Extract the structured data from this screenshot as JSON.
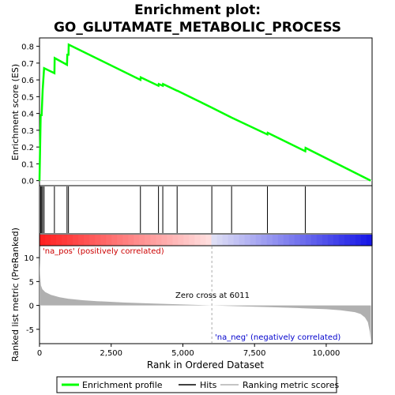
{
  "title_line1": "Enrichment plot:",
  "title_line2": "GO_GLUTAMATE_METABOLIC_PROCESS",
  "top_ylabel": "Enrichment score (ES)",
  "bottom_ylabel": "Ranked list metric (PreRanked)",
  "xlabel": "Rank in Ordered Dataset",
  "label_pos": "'na_pos' (positively correlated)",
  "label_neg": "'na_neg' (negatively correlated)",
  "zero_cross": "Zero cross at 6011",
  "legend": {
    "profile": "Enrichment profile",
    "hits": "Hits",
    "metric": "Ranking metric scores"
  },
  "colors": {
    "profile": "#00ff00",
    "hits": "#000000",
    "metric": "#b0b0b0",
    "pos": "#ff0000",
    "neg": "#0000ff"
  },
  "chart_data": {
    "type": "line",
    "x_ticks": [
      "0",
      "2,500",
      "5,000",
      "7,500",
      "10,000"
    ],
    "es_ticks": [
      "0.0",
      "0.1",
      "0.2",
      "0.3",
      "0.4",
      "0.5",
      "0.6",
      "0.7",
      "0.8"
    ],
    "metric_ticks": [
      "10",
      "5",
      "0",
      "-5"
    ],
    "xlim": [
      0,
      11600
    ],
    "es_ylim": [
      -0.03,
      0.85
    ],
    "metric_ylim": [
      -8,
      12.5
    ],
    "zero_cross": 6011,
    "hits": [
      40,
      75,
      110,
      160,
      520,
      960,
      1010,
      3520,
      4150,
      4300,
      4800,
      6010,
      6700,
      7950,
      9270
    ],
    "es_profile": [
      [
        0,
        0.0
      ],
      [
        40,
        0.39
      ],
      [
        75,
        0.39
      ],
      [
        110,
        0.54
      ],
      [
        160,
        0.67
      ],
      [
        520,
        0.64
      ],
      [
        530,
        0.73
      ],
      [
        960,
        0.69
      ],
      [
        970,
        0.75
      ],
      [
        1010,
        0.75
      ],
      [
        1020,
        0.81
      ],
      [
        3520,
        0.6
      ],
      [
        3530,
        0.615
      ],
      [
        4150,
        0.565
      ],
      [
        4160,
        0.575
      ],
      [
        4300,
        0.565
      ],
      [
        4310,
        0.575
      ],
      [
        4800,
        0.535
      ],
      [
        4810,
        0.535
      ],
      [
        6010,
        0.435
      ],
      [
        6700,
        0.375
      ],
      [
        7950,
        0.275
      ],
      [
        7960,
        0.285
      ],
      [
        9270,
        0.175
      ],
      [
        9280,
        0.195
      ],
      [
        11550,
        0.0
      ]
    ],
    "metric_profile": [
      [
        0,
        10.5
      ],
      [
        20,
        6.5
      ],
      [
        50,
        4.2
      ],
      [
        100,
        3.4
      ],
      [
        200,
        2.8
      ],
      [
        400,
        2.2
      ],
      [
        700,
        1.7
      ],
      [
        1000,
        1.4
      ],
      [
        1500,
        1.1
      ],
      [
        2000,
        0.9
      ],
      [
        3000,
        0.6
      ],
      [
        4000,
        0.4
      ],
      [
        5000,
        0.2
      ],
      [
        6011,
        0.0
      ],
      [
        7000,
        -0.2
      ],
      [
        8000,
        -0.35
      ],
      [
        9000,
        -0.55
      ],
      [
        10000,
        -0.8
      ],
      [
        10500,
        -1.0
      ],
      [
        11000,
        -1.4
      ],
      [
        11200,
        -1.8
      ],
      [
        11350,
        -2.5
      ],
      [
        11450,
        -3.5
      ],
      [
        11520,
        -5.5
      ],
      [
        11560,
        -7.5
      ]
    ]
  }
}
